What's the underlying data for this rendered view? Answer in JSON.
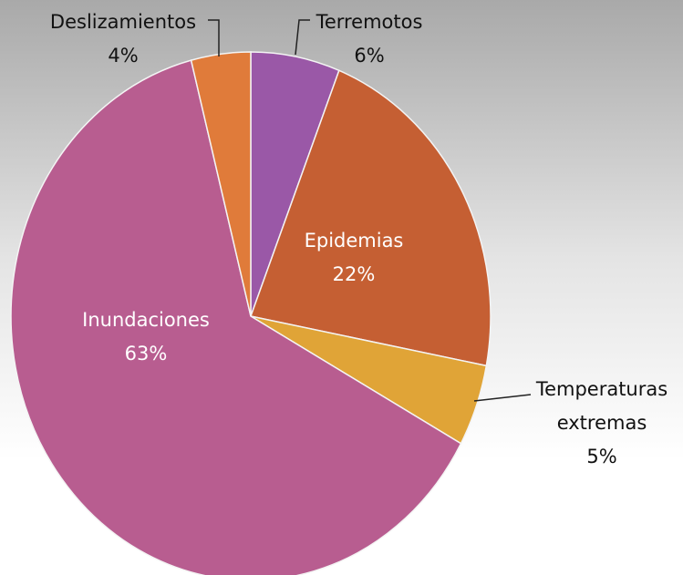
{
  "chart_data": {
    "type": "pie",
    "categories": [
      "Terremotos",
      "Epidemias",
      "Temperaturas extremas",
      "Inundaciones",
      "Deslizamientos"
    ],
    "values": [
      6,
      22,
      5,
      63,
      4
    ],
    "value_labels": [
      "6%",
      "22%",
      "5%",
      "63%",
      "4%"
    ],
    "colors": [
      "#9a58a7",
      "#c55f33",
      "#e0a437",
      "#b85d90",
      "#e07b3a"
    ]
  }
}
